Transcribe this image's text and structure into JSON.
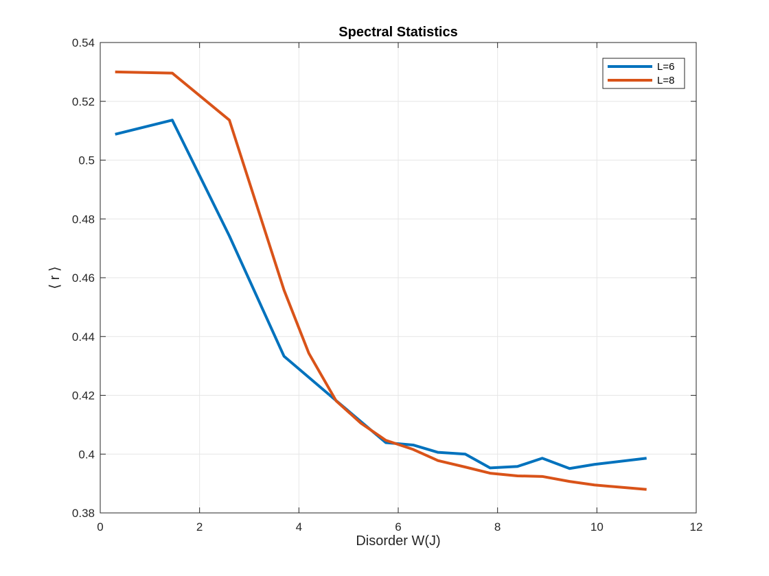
{
  "chart_data": {
    "type": "line",
    "title": "Spectral Statistics",
    "xlabel": "Disorder W(J)",
    "ylabel": "⟨ r ⟩",
    "xlim": [
      0,
      12
    ],
    "ylim": [
      0.38,
      0.54
    ],
    "xticks": [
      0,
      2,
      4,
      6,
      8,
      10,
      12
    ],
    "xtick_labels": [
      "0",
      "2",
      "4",
      "6",
      "8",
      "10",
      "12"
    ],
    "yticks": [
      0.38,
      0.4,
      0.42,
      0.44,
      0.46,
      0.48,
      0.5,
      0.52,
      0.54
    ],
    "ytick_labels": [
      "0.38",
      "0.4",
      "0.42",
      "0.44",
      "0.46",
      "0.48",
      "0.5",
      "0.52",
      "0.54"
    ],
    "grid": true,
    "legend_position": "top-right",
    "series": [
      {
        "name": "L=6",
        "color": "#0072BD",
        "x": [
          0.3,
          1.45,
          2.6,
          3.7,
          4.75,
          5.75,
          6.3,
          6.8,
          7.35,
          7.85,
          8.4,
          8.9,
          9.45,
          9.95,
          11.0
        ],
        "y": [
          0.5088,
          0.5136,
          0.4742,
          0.4333,
          0.4182,
          0.4039,
          0.4031,
          0.4006,
          0.4,
          0.3953,
          0.3958,
          0.3986,
          0.3951,
          0.3965,
          0.3986
        ]
      },
      {
        "name": "L=8",
        "color": "#D95319",
        "x": [
          0.3,
          1.45,
          2.6,
          3.7,
          4.2,
          4.75,
          5.25,
          5.75,
          6.3,
          6.8,
          7.35,
          7.85,
          8.4,
          8.9,
          9.45,
          9.95,
          11.0
        ],
        "y": [
          0.53,
          0.5296,
          0.5136,
          0.4558,
          0.4343,
          0.4181,
          0.4105,
          0.4047,
          0.4016,
          0.3978,
          0.3956,
          0.3935,
          0.3926,
          0.3924,
          0.3907,
          0.3895,
          0.388
        ]
      }
    ]
  }
}
